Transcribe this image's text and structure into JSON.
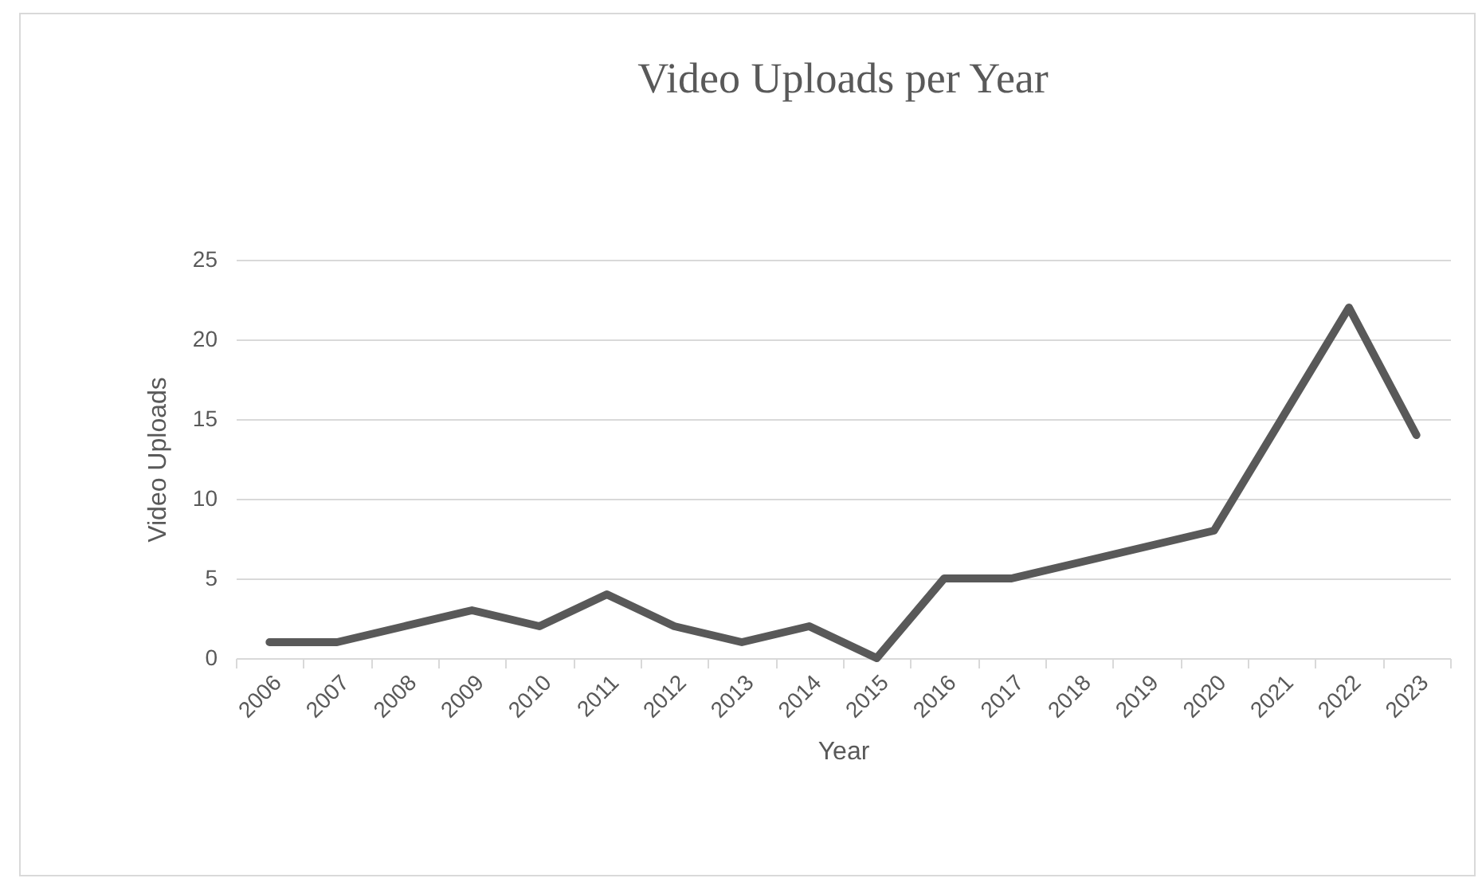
{
  "chart_data": {
    "type": "line",
    "title": "Video Uploads per Year",
    "xlabel": "Year",
    "ylabel": "Video Uploads",
    "categories": [
      "2006",
      "2007",
      "2008",
      "2009",
      "2010",
      "2011",
      "2012",
      "2013",
      "2014",
      "2015",
      "2016",
      "2017",
      "2018",
      "2019",
      "2020",
      "2021",
      "2022",
      "2023"
    ],
    "series": [
      {
        "color": "#595959",
        "values": [
          1,
          1,
          2,
          3,
          2,
          4,
          2,
          1,
          2,
          0,
          5,
          5,
          6,
          7,
          8,
          15,
          22,
          14
        ]
      }
    ],
    "ylim": [
      0,
      25
    ],
    "yticks": [
      0,
      5,
      10,
      15,
      20,
      25
    ],
    "grid": "y",
    "legend": false,
    "marker": "none",
    "line_style": "solid"
  }
}
